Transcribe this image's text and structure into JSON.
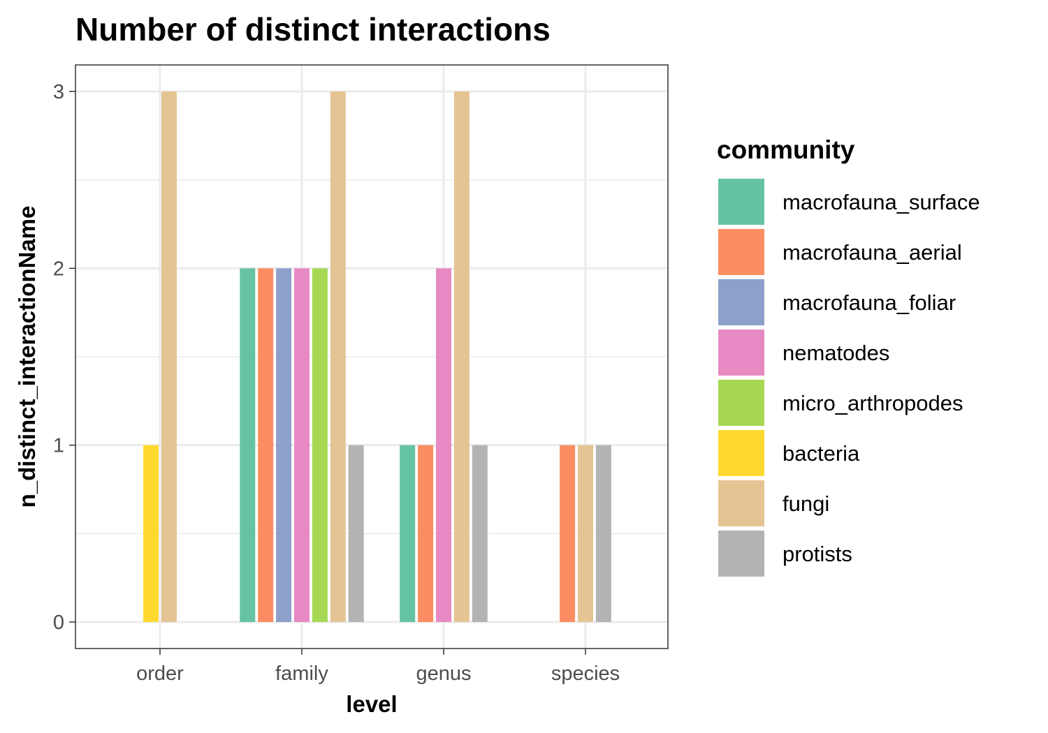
{
  "chart_data": {
    "type": "bar",
    "title": "Number of distinct interactions",
    "xlabel": "level",
    "ylabel": "n_distinct_interactionName",
    "categories": [
      "order",
      "family",
      "genus",
      "species"
    ],
    "ylim": [
      -0.15,
      3.15
    ],
    "yticks": [
      0,
      1,
      2,
      3
    ],
    "grid": true,
    "legend": {
      "title": "community",
      "position": "right"
    },
    "series": [
      {
        "name": "macrofauna_surface",
        "color": "#66c2a5",
        "values": [
          null,
          2,
          1,
          null
        ]
      },
      {
        "name": "macrofauna_aerial",
        "color": "#fc8d62",
        "values": [
          null,
          2,
          1,
          1
        ]
      },
      {
        "name": "macrofauna_foliar",
        "color": "#8da0cb",
        "values": [
          null,
          2,
          null,
          null
        ]
      },
      {
        "name": "nematodes",
        "color": "#e78ac3",
        "values": [
          null,
          2,
          2,
          null
        ]
      },
      {
        "name": "micro_arthropodes",
        "color": "#a6d854",
        "values": [
          null,
          2,
          null,
          null
        ]
      },
      {
        "name": "bacteria",
        "color": "#ffd92f",
        "values": [
          1,
          null,
          null,
          null
        ]
      },
      {
        "name": "fungi",
        "color": "#e5c494",
        "values": [
          3,
          3,
          3,
          1
        ]
      },
      {
        "name": "protists",
        "color": "#b3b3b3",
        "values": [
          null,
          1,
          1,
          1
        ]
      }
    ]
  }
}
